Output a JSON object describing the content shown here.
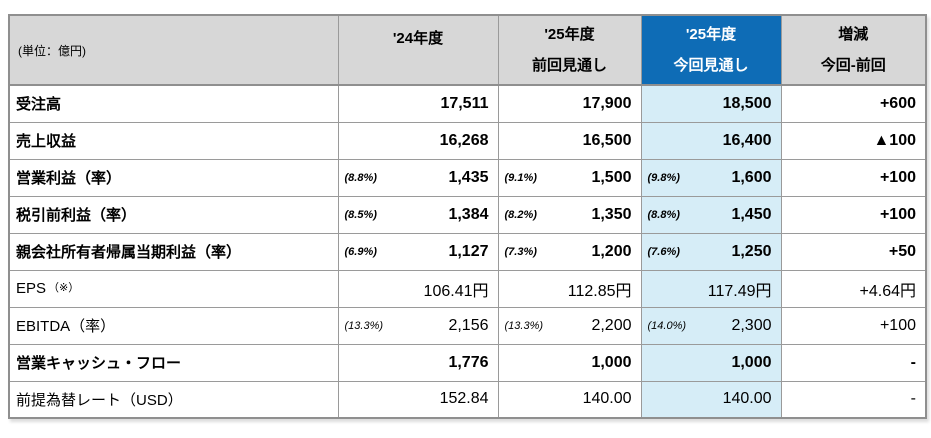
{
  "colors": {
    "header_bg": "#d7d7d7",
    "highlight_header_bg": "#0e6cb6",
    "highlight_cell_bg": "#d6edf7",
    "border": "#9a9a9a"
  },
  "header": {
    "unit": "(単位：億円)",
    "fy24": {
      "l1": "'24年度",
      "l2": ""
    },
    "prev": {
      "l1": "'25年度",
      "l2": "前回見通し"
    },
    "curr": {
      "l1": "'25年度",
      "l2": "今回見通し"
    },
    "change": {
      "l1": "増減",
      "l2": "今回-前回"
    }
  },
  "rows": [
    {
      "label": "受注高",
      "fy24_val": "17,511",
      "prev_val": "17,900",
      "curr_val": "18,500",
      "change": "+600"
    },
    {
      "label": "売上収益",
      "fy24_val": "16,268",
      "prev_val": "16,500",
      "curr_val": "16,400",
      "change": "▲100"
    },
    {
      "label": "営業利益（率）",
      "fy24_pct": "(8.8%)",
      "fy24_val": "1,435",
      "prev_pct": "(9.1%)",
      "prev_val": "1,500",
      "curr_pct": "(9.8%)",
      "curr_val": "1,600",
      "change": "+100"
    },
    {
      "label": "税引前利益（率）",
      "fy24_pct": "(8.5%)",
      "fy24_val": "1,384",
      "prev_pct": "(8.2%)",
      "prev_val": "1,350",
      "curr_pct": "(8.8%)",
      "curr_val": "1,450",
      "change": "+100"
    },
    {
      "label": "親会社所有者帰属当期利益（率）",
      "fy24_pct": "(6.9%)",
      "fy24_val": "1,127",
      "prev_pct": "(7.3%)",
      "prev_val": "1,200",
      "curr_pct": "(7.6%)",
      "curr_val": "1,250",
      "change": "+50"
    },
    {
      "label": "EPS",
      "label_note": "（※）",
      "fy24_val": "106.41円",
      "prev_val": "112.85円",
      "curr_val": "117.49円",
      "change": "+4.64円"
    },
    {
      "label": "EBITDA（率）",
      "fy24_pct": "(13.3%)",
      "fy24_val": "2,156",
      "prev_pct": "(13.3%)",
      "prev_val": "2,200",
      "curr_pct": "(14.0%)",
      "curr_val": "2,300",
      "change": "+100"
    },
    {
      "label": "営業キャッシュ・フロー",
      "fy24_val": "1,776",
      "prev_val": "1,000",
      "curr_val": "1,000",
      "change": "-"
    },
    {
      "label": "前提為替レート（USD）",
      "fy24_val": "152.84",
      "prev_val": "140.00",
      "curr_val": "140.00",
      "change": "-"
    }
  ]
}
